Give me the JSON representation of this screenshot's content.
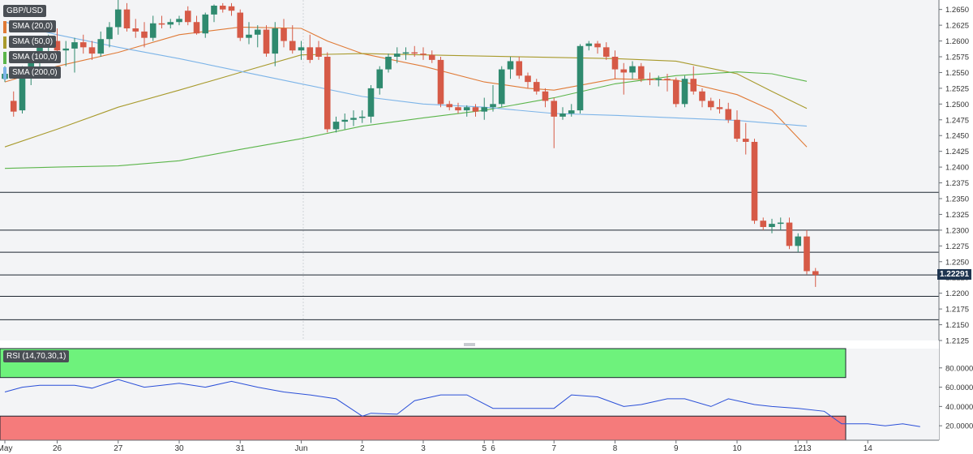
{
  "symbol": "GBP/USD",
  "indicators": {
    "sma20": {
      "label": "SMA (20,0)",
      "color": "#e07a36"
    },
    "sma50": {
      "label": "SMA (50,0)",
      "color": "#a89a2c"
    },
    "sma100": {
      "label": "SMA (100,0)",
      "color": "#5bb54a"
    },
    "sma200": {
      "label": "SMA (200,0)",
      "color": "#7cb4e8"
    },
    "rsi": {
      "label": "RSI (14,70,30,1)",
      "color": "#2a4fd8"
    }
  },
  "last_price_label": "1.22291",
  "chart_data": [
    {
      "type": "candlestick",
      "title": "",
      "y_axis_ticks": [
        "1.2650",
        "1.2625",
        "1.2600",
        "1.2575",
        "1.2550",
        "1.2525",
        "1.2500",
        "1.2475",
        "1.2450",
        "1.2425",
        "1.2400",
        "1.2375",
        "1.2350",
        "1.2325",
        "1.2300",
        "1.2275",
        "1.2250",
        "1.2225",
        "1.2200",
        "1.2175",
        "1.2150",
        "1.2125"
      ],
      "ylim": [
        1.2125,
        1.2665
      ],
      "x_axis_ticks": [
        {
          "label": "May",
          "i": 0
        },
        {
          "label": "26",
          "i": 6
        },
        {
          "label": "27",
          "i": 13
        },
        {
          "label": "30",
          "i": 20
        },
        {
          "label": "31",
          "i": 27
        },
        {
          "label": "Jun",
          "i": 34
        },
        {
          "label": "2",
          "i": 41
        },
        {
          "label": "3",
          "i": 48
        },
        {
          "label": "5",
          "i": 55
        },
        {
          "label": "6",
          "i": 56
        },
        {
          "label": "7",
          "i": 63
        },
        {
          "label": "8",
          "i": 70
        },
        {
          "label": "9",
          "i": 77
        },
        {
          "label": "10",
          "i": 84
        },
        {
          "label": "12",
          "i": 91
        },
        {
          "label": "13",
          "i": 92
        },
        {
          "label": "14",
          "i": 99
        }
      ],
      "horizontal_levels": [
        1.236,
        1.23,
        1.2265,
        1.2229,
        1.2195,
        1.2158
      ],
      "candles": [
        [
          1.254,
          1.256,
          1.2535,
          1.2548
        ],
        [
          1.2505,
          1.252,
          1.248,
          1.2488
        ],
        [
          1.249,
          1.256,
          1.2485,
          1.2545
        ],
        [
          1.2545,
          1.258,
          1.253,
          1.2565
        ],
        [
          1.2565,
          1.26,
          1.255,
          1.2592
        ],
        [
          1.2592,
          1.261,
          1.2575,
          1.26
        ],
        [
          1.26,
          1.262,
          1.257,
          1.2585
        ],
        [
          1.2585,
          1.26,
          1.256,
          1.2588
        ],
        [
          1.2588,
          1.2605,
          1.255,
          1.2598
        ],
        [
          1.2598,
          1.261,
          1.258,
          1.259
        ],
        [
          1.259,
          1.26,
          1.257,
          1.258
        ],
        [
          1.258,
          1.2615,
          1.2575,
          1.2603
        ],
        [
          1.2603,
          1.263,
          1.259,
          1.2622
        ],
        [
          1.2622,
          1.2665,
          1.261,
          1.265
        ],
        [
          1.265,
          1.266,
          1.2615,
          1.262
        ],
        [
          1.262,
          1.2635,
          1.2605,
          1.2615
        ],
        [
          1.2615,
          1.263,
          1.259,
          1.2605
        ],
        [
          1.2605,
          1.264,
          1.26,
          1.2628
        ],
        [
          1.2628,
          1.264,
          1.262,
          1.2626
        ],
        [
          1.2626,
          1.2635,
          1.262,
          1.263
        ],
        [
          1.263,
          1.264,
          1.2625,
          1.2635
        ],
        [
          1.2648,
          1.2655,
          1.2625,
          1.263
        ],
        [
          1.263,
          1.264,
          1.261,
          1.2612
        ],
        [
          1.2612,
          1.2645,
          1.2605,
          1.2642
        ],
        [
          1.2642,
          1.2658,
          1.263,
          1.2656
        ],
        [
          1.2656,
          1.266,
          1.2645,
          1.265
        ],
        [
          1.2655,
          1.266,
          1.264,
          1.2648
        ],
        [
          1.2645,
          1.265,
          1.26,
          1.2605
        ],
        [
          1.2605,
          1.263,
          1.2595,
          1.261
        ],
        [
          1.261,
          1.2625,
          1.259,
          1.2618
        ],
        [
          1.2618,
          1.2625,
          1.2575,
          1.258
        ],
        [
          1.258,
          1.263,
          1.256,
          1.262
        ],
        [
          1.262,
          1.2635,
          1.259,
          1.26
        ],
        [
          1.26,
          1.2625,
          1.258,
          1.2585
        ],
        [
          1.2585,
          1.26,
          1.257,
          1.259
        ],
        [
          1.259,
          1.261,
          1.2565,
          1.257
        ],
        [
          1.259,
          1.26,
          1.257,
          1.2575
        ],
        [
          1.2575,
          1.2582,
          1.2455,
          1.246
        ],
        [
          1.246,
          1.248,
          1.2455,
          1.2472
        ],
        [
          1.2472,
          1.2485,
          1.246,
          1.2475
        ],
        [
          1.2475,
          1.249,
          1.2465,
          1.2478
        ],
        [
          1.2478,
          1.249,
          1.247,
          1.248
        ],
        [
          1.248,
          1.253,
          1.247,
          1.2525
        ],
        [
          1.2525,
          1.256,
          1.2515,
          1.2555
        ],
        [
          1.2555,
          1.258,
          1.255,
          1.2575
        ],
        [
          1.2575,
          1.259,
          1.2565,
          1.258
        ],
        [
          1.258,
          1.259,
          1.257,
          1.2582
        ],
        [
          1.2582,
          1.2592,
          1.2575,
          1.258
        ],
        [
          1.258,
          1.259,
          1.257,
          1.2578
        ],
        [
          1.2578,
          1.2585,
          1.2565,
          1.257
        ],
        [
          1.257,
          1.2575,
          1.2495,
          1.25
        ],
        [
          1.25,
          1.2505,
          1.249,
          1.2495
        ],
        [
          1.2495,
          1.2502,
          1.2485,
          1.249
        ],
        [
          1.249,
          1.2498,
          1.248,
          1.2495
        ],
        [
          1.2495,
          1.25,
          1.248,
          1.2488
        ],
        [
          1.2488,
          1.251,
          1.2475,
          1.2495
        ],
        [
          1.2495,
          1.253,
          1.2488,
          1.25
        ],
        [
          1.25,
          1.256,
          1.2495,
          1.2555
        ],
        [
          1.2555,
          1.2575,
          1.254,
          1.2568
        ],
        [
          1.2568,
          1.2575,
          1.254,
          1.2545
        ],
        [
          1.2545,
          1.255,
          1.2525,
          1.2535
        ],
        [
          1.2535,
          1.254,
          1.2515,
          1.252
        ],
        [
          1.252,
          1.2525,
          1.2495,
          1.2505
        ],
        [
          1.2505,
          1.251,
          1.243,
          1.248
        ],
        [
          1.248,
          1.2495,
          1.2475,
          1.2485
        ],
        [
          1.2485,
          1.25,
          1.248,
          1.249
        ],
        [
          1.249,
          1.2595,
          1.2485,
          1.2592
        ],
        [
          1.2592,
          1.26,
          1.2585,
          1.2596
        ],
        [
          1.2596,
          1.26,
          1.258,
          1.259
        ],
        [
          1.259,
          1.2598,
          1.257,
          1.2575
        ],
        [
          1.2575,
          1.2585,
          1.254,
          1.2555
        ],
        [
          1.2555,
          1.2565,
          1.2515,
          1.255
        ],
        [
          1.255,
          1.2568,
          1.254,
          1.256
        ],
        [
          1.256,
          1.2565,
          1.2535,
          1.254
        ],
        [
          1.254,
          1.255,
          1.253,
          1.2538
        ],
        [
          1.2538,
          1.2545,
          1.2528,
          1.254
        ],
        [
          1.254,
          1.2548,
          1.252,
          1.2538
        ],
        [
          1.2538,
          1.2542,
          1.2495,
          1.25
        ],
        [
          1.25,
          1.2545,
          1.2495,
          1.254
        ],
        [
          1.254,
          1.256,
          1.2515,
          1.252
        ],
        [
          1.252,
          1.2525,
          1.2495,
          1.2505
        ],
        [
          1.2505,
          1.251,
          1.249,
          1.2495
        ],
        [
          1.2495,
          1.2508,
          1.2485,
          1.2492
        ],
        [
          1.2492,
          1.2502,
          1.247,
          1.2475
        ],
        [
          1.2475,
          1.249,
          1.244,
          1.2445
        ],
        [
          1.2445,
          1.247,
          1.242,
          1.244
        ],
        [
          1.244,
          1.2445,
          1.231,
          1.2315
        ],
        [
          1.2315,
          1.232,
          1.23,
          1.2305
        ],
        [
          1.2305,
          1.2318,
          1.2295,
          1.231
        ],
        [
          1.231,
          1.232,
          1.23,
          1.2312
        ],
        [
          1.2312,
          1.232,
          1.227,
          1.2275
        ],
        [
          1.2275,
          1.2295,
          1.2265,
          1.229
        ],
        [
          1.229,
          1.23,
          1.223,
          1.2235
        ],
        [
          1.2235,
          1.224,
          1.221,
          1.2229
        ]
      ],
      "series": [
        {
          "name": "SMA (20,0)",
          "values": [
            [
              0,
              1.2535
            ],
            [
              6,
              1.256
            ],
            [
              13,
              1.2582
            ],
            [
              20,
              1.261
            ],
            [
              27,
              1.2622
            ],
            [
              34,
              1.262
            ],
            [
              37,
              1.26
            ],
            [
              41,
              1.258
            ],
            [
              48,
              1.256
            ],
            [
              55,
              1.2535
            ],
            [
              60,
              1.2525
            ],
            [
              63,
              1.2522
            ],
            [
              70,
              1.254
            ],
            [
              77,
              1.2538
            ],
            [
              84,
              1.2515
            ],
            [
              88,
              1.249
            ],
            [
              92,
              1.2432
            ]
          ]
        },
        {
          "name": "SMA (50,0)",
          "values": [
            [
              0,
              1.2432
            ],
            [
              6,
              1.246
            ],
            [
              13,
              1.2495
            ],
            [
              20,
              1.2522
            ],
            [
              27,
              1.255
            ],
            [
              34,
              1.2578
            ],
            [
              41,
              1.258
            ],
            [
              48,
              1.2578
            ],
            [
              55,
              1.2576
            ],
            [
              63,
              1.2574
            ],
            [
              70,
              1.2572
            ],
            [
              77,
              1.2568
            ],
            [
              84,
              1.2548
            ],
            [
              88,
              1.252
            ],
            [
              92,
              1.2493
            ]
          ]
        },
        {
          "name": "SMA (100,0)",
          "values": [
            [
              0,
              1.2398
            ],
            [
              6,
              1.24
            ],
            [
              13,
              1.2402
            ],
            [
              20,
              1.241
            ],
            [
              27,
              1.2428
            ],
            [
              34,
              1.2445
            ],
            [
              41,
              1.2465
            ],
            [
              48,
              1.2478
            ],
            [
              55,
              1.249
            ],
            [
              63,
              1.251
            ],
            [
              70,
              1.2532
            ],
            [
              77,
              1.2545
            ],
            [
              84,
              1.2551
            ],
            [
              88,
              1.2548
            ],
            [
              92,
              1.2536
            ]
          ]
        },
        {
          "name": "SMA (200,0)",
          "values": [
            [
              0,
              1.263
            ],
            [
              6,
              1.261
            ],
            [
              13,
              1.259
            ],
            [
              20,
              1.2572
            ],
            [
              27,
              1.2552
            ],
            [
              34,
              1.2532
            ],
            [
              41,
              1.2512
            ],
            [
              48,
              1.25
            ],
            [
              55,
              1.2495
            ],
            [
              63,
              1.2485
            ],
            [
              70,
              1.2482
            ],
            [
              77,
              1.2478
            ],
            [
              84,
              1.2474
            ],
            [
              92,
              1.2465
            ]
          ]
        }
      ]
    },
    {
      "type": "line",
      "title": "",
      "y_axis_ticks": [
        "80.0000",
        "60.0000",
        "40.0000",
        "20.0000"
      ],
      "ylim": [
        5,
        100
      ],
      "zones": {
        "overbought": 70,
        "oversold": 30
      },
      "series": [
        {
          "name": "RSI (14,70,30,1)",
          "values": [
            [
              0,
              55
            ],
            [
              2,
              60
            ],
            [
              4,
              62
            ],
            [
              8,
              62
            ],
            [
              10,
              59
            ],
            [
              13,
              68
            ],
            [
              16,
              60
            ],
            [
              18,
              62
            ],
            [
              20,
              64
            ],
            [
              23,
              60
            ],
            [
              26,
              66
            ],
            [
              29,
              60
            ],
            [
              32,
              55
            ],
            [
              35,
              52
            ],
            [
              38,
              48
            ],
            [
              41,
              30
            ],
            [
              42,
              33
            ],
            [
              45,
              32
            ],
            [
              47,
              46
            ],
            [
              50,
              52
            ],
            [
              53,
              52
            ],
            [
              56,
              38
            ],
            [
              60,
              38
            ],
            [
              63,
              38
            ],
            [
              65,
              52
            ],
            [
              68,
              50
            ],
            [
              71,
              40
            ],
            [
              73,
              42
            ],
            [
              76,
              48
            ],
            [
              78,
              48
            ],
            [
              81,
              40
            ],
            [
              83,
              48
            ],
            [
              86,
              42
            ],
            [
              88,
              40
            ],
            [
              91,
              38
            ],
            [
              94,
              35
            ],
            [
              96,
              22
            ],
            [
              99,
              22
            ],
            [
              101,
              20
            ],
            [
              103,
              22
            ],
            [
              105,
              19
            ]
          ]
        }
      ]
    }
  ]
}
